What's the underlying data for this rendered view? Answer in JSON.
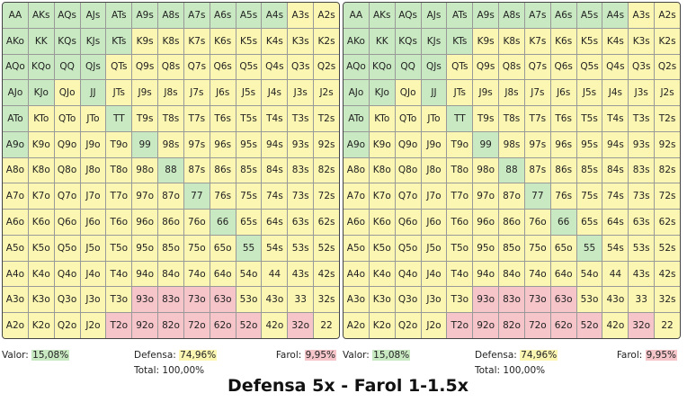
{
  "legend": {
    "valor_label": "Valor:",
    "defensa_label": "Defensa:",
    "farol_label": "Farol:",
    "total_label": "Total:"
  },
  "colors": {
    "valor": "#c9e9c2",
    "defensa": "#fbf6b1",
    "farol": "#f5c5ca"
  },
  "title": "Defensa 5x - Farol 1-1.5x",
  "panels": [
    {
      "stats": {
        "valor": "15,08%",
        "defensa": "74,96%",
        "farol": "9,95%",
        "total": "100,00%"
      },
      "rows": [
        [
          "v:AA",
          "v:AKs",
          "v:AQs",
          "v:AJs",
          "v:ATs",
          "v:A9s",
          "v:A8s",
          "v:A7s",
          "v:A6s",
          "v:A5s",
          "v:A4s",
          "d:A3s",
          "d:A2s"
        ],
        [
          "v:AKo",
          "v:KK",
          "v:KQs",
          "v:KJs",
          "v:KTs",
          "d:K9s",
          "d:K8s",
          "d:K7s",
          "d:K6s",
          "d:K5s",
          "d:K4s",
          "d:K3s",
          "d:K2s"
        ],
        [
          "v:AQo",
          "v:KQo",
          "v:QQ",
          "v:QJs",
          "d:QTs",
          "d:Q9s",
          "d:Q8s",
          "d:Q7s",
          "d:Q6s",
          "d:Q5s",
          "d:Q4s",
          "d:Q3s",
          "d:Q2s"
        ],
        [
          "v:AJo",
          "v:KJo",
          "d:QJo",
          "v:JJ",
          "d:JTs",
          "d:J9s",
          "d:J8s",
          "d:J7s",
          "d:J6s",
          "d:J5s",
          "d:J4s",
          "d:J3s",
          "d:J2s"
        ],
        [
          "v:ATo",
          "d:KTo",
          "d:QTo",
          "d:JTo",
          "v:TT",
          "d:T9s",
          "d:T8s",
          "d:T7s",
          "d:T6s",
          "d:T5s",
          "d:T4s",
          "d:T3s",
          "d:T2s"
        ],
        [
          "v:A9o",
          "d:K9o",
          "d:Q9o",
          "d:J9o",
          "d:T9o",
          "v:99",
          "d:98s",
          "d:97s",
          "d:96s",
          "d:95s",
          "d:94s",
          "d:93s",
          "d:92s"
        ],
        [
          "d:A8o",
          "d:K8o",
          "d:Q8o",
          "d:J8o",
          "d:T8o",
          "d:98o",
          "v:88",
          "d:87s",
          "d:86s",
          "d:85s",
          "d:84s",
          "d:83s",
          "d:82s"
        ],
        [
          "d:A7o",
          "d:K7o",
          "d:Q7o",
          "d:J7o",
          "d:T7o",
          "d:97o",
          "d:87o",
          "v:77",
          "d:76s",
          "d:75s",
          "d:74s",
          "d:73s",
          "d:72s"
        ],
        [
          "d:A6o",
          "d:K6o",
          "d:Q6o",
          "d:J6o",
          "d:T6o",
          "d:96o",
          "d:86o",
          "d:76o",
          "v:66",
          "d:65s",
          "d:64s",
          "d:63s",
          "d:62s"
        ],
        [
          "d:A5o",
          "d:K5o",
          "d:Q5o",
          "d:J5o",
          "d:T5o",
          "d:95o",
          "d:85o",
          "d:75o",
          "d:65o",
          "v:55",
          "d:54s",
          "d:53s",
          "d:52s"
        ],
        [
          "d:A4o",
          "d:K4o",
          "d:Q4o",
          "d:J4o",
          "d:T4o",
          "d:94o",
          "d:84o",
          "d:74o",
          "d:64o",
          "d:54o",
          "d:44",
          "d:43s",
          "d:42s"
        ],
        [
          "d:A3o",
          "d:K3o",
          "d:Q3o",
          "d:J3o",
          "d:T3o",
          "f:93o",
          "f:83o",
          "f:73o",
          "f:63o",
          "d:53o",
          "d:43o",
          "d:33",
          "d:32s"
        ],
        [
          "d:A2o",
          "d:K2o",
          "d:Q2o",
          "d:J2o",
          "f:T2o",
          "f:92o",
          "f:82o",
          "f:72o",
          "f:62o",
          "f:52o",
          "d:42o",
          "f:32o",
          "d:22"
        ]
      ]
    },
    {
      "stats": {
        "valor": "15,08%",
        "defensa": "74,96%",
        "farol": "9,95%",
        "total": "100,00%"
      },
      "rows": [
        [
          "v:AA",
          "v:AKs",
          "v:AQs",
          "v:AJs",
          "v:ATs",
          "v:A9s",
          "v:A8s",
          "v:A7s",
          "v:A6s",
          "v:A5s",
          "v:A4s",
          "d:A3s",
          "d:A2s"
        ],
        [
          "v:AKo",
          "v:KK",
          "v:KQs",
          "v:KJs",
          "v:KTs",
          "d:K9s",
          "d:K8s",
          "d:K7s",
          "d:K6s",
          "d:K5s",
          "d:K4s",
          "d:K3s",
          "d:K2s"
        ],
        [
          "v:AQo",
          "v:KQo",
          "v:QQ",
          "v:QJs",
          "d:QTs",
          "d:Q9s",
          "d:Q8s",
          "d:Q7s",
          "d:Q6s",
          "d:Q5s",
          "d:Q4s",
          "d:Q3s",
          "d:Q2s"
        ],
        [
          "v:AJo",
          "v:KJo",
          "d:QJo",
          "v:JJ",
          "d:JTs",
          "d:J9s",
          "d:J8s",
          "d:J7s",
          "d:J6s",
          "d:J5s",
          "d:J4s",
          "d:J3s",
          "d:J2s"
        ],
        [
          "v:ATo",
          "d:KTo",
          "d:QTo",
          "d:JTo",
          "v:TT",
          "d:T9s",
          "d:T8s",
          "d:T7s",
          "d:T6s",
          "d:T5s",
          "d:T4s",
          "d:T3s",
          "d:T2s"
        ],
        [
          "v:A9o",
          "d:K9o",
          "d:Q9o",
          "d:J9o",
          "d:T9o",
          "v:99",
          "d:98s",
          "d:97s",
          "d:96s",
          "d:95s",
          "d:94s",
          "d:93s",
          "d:92s"
        ],
        [
          "d:A8o",
          "d:K8o",
          "d:Q8o",
          "d:J8o",
          "d:T8o",
          "d:98o",
          "v:88",
          "d:87s",
          "d:86s",
          "d:85s",
          "d:84s",
          "d:83s",
          "d:82s"
        ],
        [
          "d:A7o",
          "d:K7o",
          "d:Q7o",
          "d:J7o",
          "d:T7o",
          "d:97o",
          "d:87o",
          "v:77",
          "d:76s",
          "d:75s",
          "d:74s",
          "d:73s",
          "d:72s"
        ],
        [
          "d:A6o",
          "d:K6o",
          "d:Q6o",
          "d:J6o",
          "d:T6o",
          "d:96o",
          "d:86o",
          "d:76o",
          "v:66",
          "d:65s",
          "d:64s",
          "d:63s",
          "d:62s"
        ],
        [
          "d:A5o",
          "d:K5o",
          "d:Q5o",
          "d:J5o",
          "d:T5o",
          "d:95o",
          "d:85o",
          "d:75o",
          "d:65o",
          "v:55",
          "d:54s",
          "d:53s",
          "d:52s"
        ],
        [
          "d:A4o",
          "d:K4o",
          "d:Q4o",
          "d:J4o",
          "d:T4o",
          "d:94o",
          "d:84o",
          "d:74o",
          "d:64o",
          "d:54o",
          "d:44",
          "d:43s",
          "d:42s"
        ],
        [
          "d:A3o",
          "d:K3o",
          "d:Q3o",
          "d:J3o",
          "d:T3o",
          "f:93o",
          "f:83o",
          "f:73o",
          "f:63o",
          "d:53o",
          "d:43o",
          "d:33",
          "d:32s"
        ],
        [
          "d:A2o",
          "d:K2o",
          "d:Q2o",
          "d:J2o",
          "f:T2o",
          "f:92o",
          "f:82o",
          "f:72o",
          "f:62o",
          "f:52o",
          "d:42o",
          "f:32o",
          "d:22"
        ]
      ]
    }
  ]
}
